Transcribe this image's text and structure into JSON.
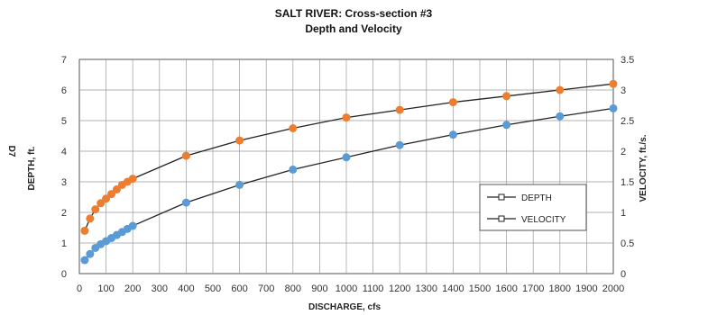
{
  "page_label": "D7",
  "chart_data": {
    "type": "line",
    "title": "SALT RIVER: Cross-section #3",
    "subtitle": "Depth and Velocity",
    "xlabel": "DISCHARGE, cfs",
    "ylabel_left": "DEPTH, ft.",
    "ylabel_right": "VELOCITY, ft./s.",
    "xlim": [
      0,
      2000
    ],
    "ylim_left": [
      0,
      7
    ],
    "ylim_right": [
      0,
      3.5
    ],
    "x_ticks": [
      0,
      100,
      200,
      300,
      400,
      500,
      600,
      700,
      800,
      900,
      1000,
      1100,
      1200,
      1300,
      1400,
      1500,
      1600,
      1700,
      1800,
      1900,
      2000
    ],
    "y_ticks_left": [
      "0",
      "1",
      "2",
      "3",
      "4",
      "5",
      "6",
      "7"
    ],
    "y_ticks_right": [
      "0",
      "0.5",
      "1",
      "1.5",
      "2",
      "2.5",
      "3",
      "3.5"
    ],
    "grid": true,
    "legend_placement": "right",
    "series": [
      {
        "name": "DEPTH",
        "axis": "left",
        "color": "#ED7D31",
        "x": [
          20,
          40,
          60,
          80,
          100,
          120,
          140,
          160,
          180,
          200,
          400,
          600,
          800,
          1000,
          1200,
          1400,
          1600,
          1800,
          2000
        ],
        "values": [
          1.4,
          1.8,
          2.1,
          2.3,
          2.45,
          2.6,
          2.75,
          2.9,
          3.0,
          3.1,
          3.85,
          4.35,
          4.75,
          5.1,
          5.35,
          5.6,
          5.8,
          6.0,
          6.2
        ]
      },
      {
        "name": "VELOCITY",
        "axis": "right",
        "color": "#5B9BD5",
        "x": [
          20,
          40,
          60,
          80,
          100,
          120,
          140,
          160,
          180,
          200,
          400,
          600,
          800,
          1000,
          1200,
          1400,
          1600,
          1800,
          2000
        ],
        "values": [
          0.22,
          0.32,
          0.42,
          0.48,
          0.53,
          0.58,
          0.63,
          0.68,
          0.73,
          0.78,
          1.16,
          1.45,
          1.7,
          1.9,
          2.1,
          2.27,
          2.43,
          2.57,
          2.7
        ]
      }
    ]
  }
}
